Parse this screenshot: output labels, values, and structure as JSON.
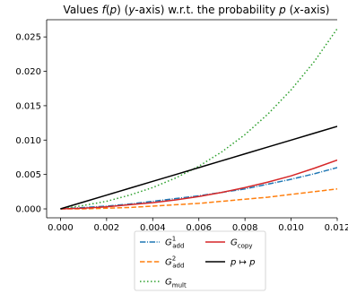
{
  "chart_data": {
    "type": "line",
    "title": "Values f(p) (y-axis) w.r.t. the probability p (x-axis)",
    "xlabel": "",
    "ylabel": "",
    "xlim": [
      -0.0006,
      0.012
    ],
    "ylim": [
      -0.0013,
      0.0275
    ],
    "xticks": [
      0.0,
      0.002,
      0.004,
      0.006,
      0.008,
      0.01,
      0.012
    ],
    "xtick_labels": [
      "0.000",
      "0.002",
      "0.004",
      "0.006",
      "0.008",
      "0.010",
      "0.012"
    ],
    "yticks": [
      0.0,
      0.005,
      0.01,
      0.015,
      0.02,
      0.025
    ],
    "ytick_labels": [
      "0.000",
      "0.005",
      "0.010",
      "0.015",
      "0.020",
      "0.025"
    ],
    "grid": false,
    "legend_position": "bottom-center",
    "x": [
      0.0,
      0.001,
      0.002,
      0.003,
      0.004,
      0.005,
      0.006,
      0.007,
      0.008,
      0.009,
      0.01,
      0.011,
      0.012
    ],
    "series": [
      {
        "name": "G¹_add",
        "color": "#1f77b4",
        "dash": "dashdot",
        "values": [
          0.0,
          0.0002,
          0.0004,
          0.0007,
          0.0011,
          0.0015,
          0.0019,
          0.0024,
          0.0029,
          0.0036,
          0.0043,
          0.0051,
          0.006
        ]
      },
      {
        "name": "G²_add",
        "color": "#ff7f0e",
        "dash": "dashed",
        "values": [
          0.0,
          0.0,
          0.0001,
          0.0002,
          0.0004,
          0.0006,
          0.0008,
          0.0011,
          0.0014,
          0.0017,
          0.0021,
          0.0025,
          0.0029
        ]
      },
      {
        "name": "G_mult",
        "color": "#2ca02c",
        "dash": "dotted",
        "values": [
          0.0,
          0.0005,
          0.0011,
          0.002,
          0.0031,
          0.0045,
          0.0062,
          0.0083,
          0.0108,
          0.0138,
          0.0173,
          0.0214,
          0.0262
        ]
      },
      {
        "name": "G_copy",
        "color": "#d62728",
        "dash": "solid",
        "values": [
          0.0,
          0.0001,
          0.0003,
          0.0006,
          0.0009,
          0.0013,
          0.0018,
          0.0024,
          0.0031,
          0.0039,
          0.0048,
          0.0059,
          0.0071
        ]
      },
      {
        "name": "p ↦ p",
        "color": "#000000",
        "dash": "solid",
        "values": [
          0.0,
          0.001,
          0.002,
          0.003,
          0.004,
          0.005,
          0.006,
          0.007,
          0.008,
          0.009,
          0.01,
          0.011,
          0.012
        ]
      }
    ]
  }
}
